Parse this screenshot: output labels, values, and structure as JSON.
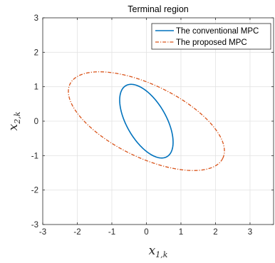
{
  "chart_data": {
    "type": "line",
    "title": "Terminal region",
    "xlabel": "x",
    "xlabel_sub": "1,k",
    "ylabel": "x",
    "ylabel_sub": "2,k",
    "xlim": [
      -3,
      3
    ],
    "ylim": [
      -3,
      3
    ],
    "xticks": [
      -3,
      -2,
      -1,
      0,
      1,
      2,
      3
    ],
    "xtick_labels": [
      "-3",
      "-2",
      "-1",
      "0",
      "1",
      "2",
      "3"
    ],
    "yticks": [
      -3,
      -2,
      -1,
      0,
      1,
      2,
      3
    ],
    "ytick_labels": [
      "-3",
      "-2",
      "-1",
      "0",
      "1",
      "2",
      "3"
    ],
    "grid": true,
    "legend_position": "top-right",
    "series": [
      {
        "name": "The conventional MPC",
        "shape": "ellipse",
        "center": [
          0,
          0
        ],
        "semi_major": 1.19,
        "semi_minor": 0.57,
        "rotation_deg": -60,
        "color": "#0072BD",
        "line_style": "solid"
      },
      {
        "name": "The proposed MPC",
        "shape": "ellipse",
        "center": [
          0,
          0
        ],
        "semi_major": 2.46,
        "semi_minor": 1.05,
        "rotation_deg": -26,
        "color": "#D95319",
        "line_style": "dash-dot"
      }
    ]
  }
}
